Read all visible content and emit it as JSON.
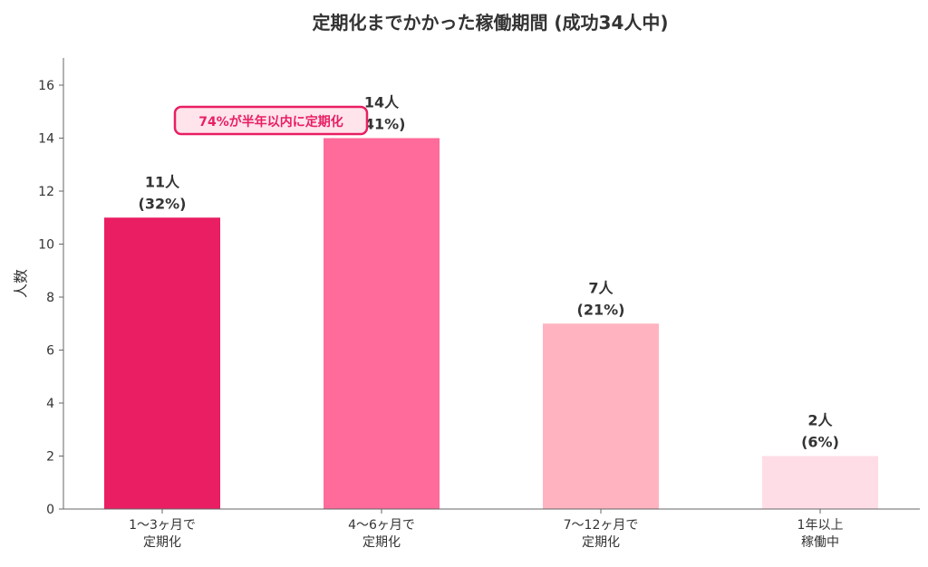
{
  "chart_data": {
    "type": "bar",
    "title": "定期化までかかった稼働期間 (成功34人中)",
    "xlabel": "",
    "ylabel": "人数",
    "ylim": [
      0,
      17
    ],
    "yticks": [
      0,
      2,
      4,
      6,
      8,
      10,
      12,
      14,
      16
    ],
    "grid": false,
    "categories": [
      [
        "1〜3ヶ月で",
        "定期化"
      ],
      [
        "4〜6ヶ月で",
        "定期化"
      ],
      [
        "7〜12ヶ月で",
        "定期化"
      ],
      [
        "1年以上",
        "稼働中"
      ]
    ],
    "values": [
      11,
      14,
      7,
      2
    ],
    "colors": [
      "#e91e63",
      "#ff6b9a",
      "#ffb3c1",
      "#ffdde6"
    ],
    "data_labels": [
      [
        "11人",
        "(32%)"
      ],
      [
        "14人",
        "(41%)"
      ],
      [
        "7人",
        "(21%)"
      ],
      [
        "2人",
        "(6%)"
      ]
    ],
    "annotation": {
      "text": "74%が半年以内に定期化",
      "text_color": "#e91e63",
      "border_color": "#e91e63",
      "fill_color": "#ffe4ec"
    }
  }
}
